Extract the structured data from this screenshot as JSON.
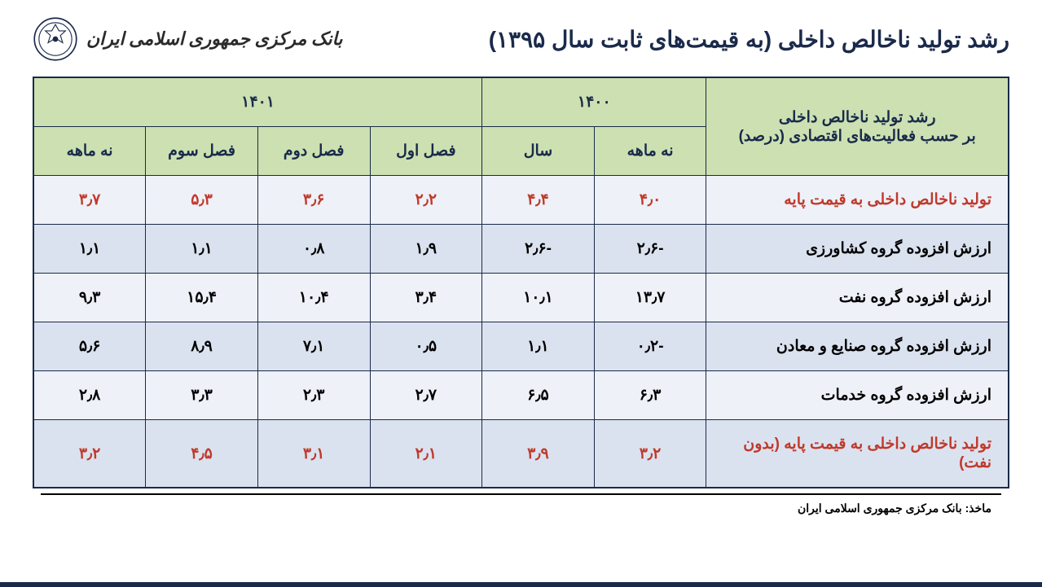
{
  "header": {
    "title": "رشد تولید ناخالص داخلی (به قیمت‌های ثابت سال ۱۳۹۵)",
    "brand_text": "بانک مرکزی جمهوری اسلامی ایران",
    "logo_stroke": "#1a2a4a"
  },
  "colors": {
    "border": "#1a2a4a",
    "header_bg": "#cce0b2",
    "row_light": "#eef1f8",
    "row_dark": "#dbe2ef",
    "red": "#c0392b",
    "text": "#1a2a4a",
    "page_bg": "#ffffff",
    "bottom_bar": "#1a2a4a"
  },
  "fontsizes": {
    "title": 28,
    "brand": 22,
    "th": 19,
    "td": 19,
    "source": 14
  },
  "table": {
    "row_label_header": "رشد تولید ناخالص داخلی\nبر حسب فعالیت‌های اقتصادی (درصد)",
    "row_label_header_l1": "رشد تولید ناخالص داخلی",
    "row_label_header_l2": "بر حسب فعالیت‌های اقتصادی (درصد)",
    "year_1400": "۱۴۰۰",
    "year_1401": "۱۴۰۱",
    "sub_1400": {
      "nine": "نه ماهه",
      "year": "سال"
    },
    "sub_1401": {
      "q1": "فصل اول",
      "q2": "فصل دوم",
      "q3": "فصل سوم",
      "nine": "نه ماهه"
    },
    "rows": [
      {
        "label": "تولید ناخالص داخلی به قیمت پایه",
        "highlight": true,
        "c1400_nine": "۴٫۰",
        "c1400_year": "۴٫۴",
        "c1401_q1": "۲٫۲",
        "c1401_q2": "۳٫۶",
        "c1401_q3": "۵٫۳",
        "c1401_nine": "۳٫۷"
      },
      {
        "label": "ارزش افزوده گروه کشاورزی",
        "highlight": false,
        "c1400_nine": "-۲٫۶",
        "c1400_year": "-۲٫۶",
        "c1401_q1": "۱٫۹",
        "c1401_q2": "۰٫۸",
        "c1401_q3": "۱٫۱",
        "c1401_nine": "۱٫۱"
      },
      {
        "label": "ارزش افزوده گروه نفت",
        "highlight": false,
        "c1400_nine": "۱۳٫۷",
        "c1400_year": "۱۰٫۱",
        "c1401_q1": "۳٫۴",
        "c1401_q2": "۱۰٫۴",
        "c1401_q3": "۱۵٫۴",
        "c1401_nine": "۹٫۳"
      },
      {
        "label": "ارزش افزوده گروه صنایع و معادن",
        "highlight": false,
        "c1400_nine": "-۰٫۲",
        "c1400_year": "۱٫۱",
        "c1401_q1": "۰٫۵",
        "c1401_q2": "۷٫۱",
        "c1401_q3": "۸٫۹",
        "c1401_nine": "۵٫۶"
      },
      {
        "label": "ارزش افزوده گروه خدمات",
        "highlight": false,
        "c1400_nine": "۶٫۳",
        "c1400_year": "۶٫۵",
        "c1401_q1": "۲٫۷",
        "c1401_q2": "۲٫۳",
        "c1401_q3": "۳٫۳",
        "c1401_nine": "۲٫۸"
      },
      {
        "label": "تولید ناخالص داخلی به قیمت پایه (بدون نفت)",
        "highlight": true,
        "c1400_nine": "۳٫۲",
        "c1400_year": "۳٫۹",
        "c1401_q1": "۲٫۱",
        "c1401_q2": "۳٫۱",
        "c1401_q3": "۴٫۵",
        "c1401_nine": "۳٫۲"
      }
    ]
  },
  "source": "ماخذ: بانک مرکزی جمهوری اسلامی ایران"
}
